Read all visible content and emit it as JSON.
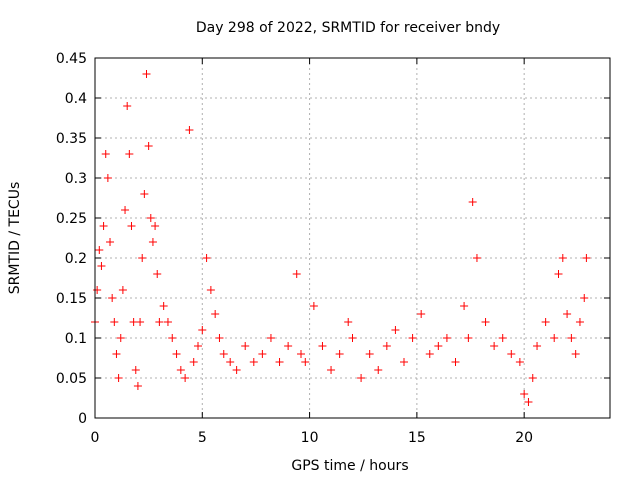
{
  "chart_data": {
    "type": "scatter",
    "title": "Day 298 of 2022, SRMTID for receiver bndy",
    "xlabel": "GPS time / hours",
    "ylabel": "SRMTID / TECUs",
    "xlim": [
      0,
      24
    ],
    "ylim": [
      0,
      0.45
    ],
    "xticks": [
      0,
      5,
      10,
      15,
      20
    ],
    "xtick_labels": [
      "0",
      "5",
      "10",
      "15",
      "20"
    ],
    "yticks": [
      0,
      0.05,
      0.1,
      0.15,
      0.2,
      0.25,
      0.3,
      0.35,
      0.4,
      0.45
    ],
    "ytick_labels": [
      "0",
      "0.05",
      "0.1",
      "0.15",
      "0.2",
      "0.25",
      "0.3",
      "0.35",
      "0.4",
      "0.45"
    ],
    "grid": true,
    "marker": "+",
    "color": "#ff0000",
    "series": [
      {
        "name": "SRMTID",
        "x": [
          0.0,
          0.1,
          0.2,
          0.3,
          0.4,
          0.5,
          0.6,
          0.7,
          0.8,
          0.9,
          1.0,
          1.1,
          1.2,
          1.3,
          1.4,
          1.5,
          1.6,
          1.7,
          1.8,
          1.9,
          2.0,
          2.1,
          2.2,
          2.3,
          2.4,
          2.5,
          2.6,
          2.7,
          2.8,
          2.9,
          3.0,
          3.2,
          3.4,
          3.6,
          3.8,
          4.0,
          4.2,
          4.4,
          4.6,
          4.8,
          5.0,
          5.2,
          5.4,
          5.6,
          5.8,
          6.0,
          6.3,
          6.6,
          7.0,
          7.4,
          7.8,
          8.2,
          8.6,
          9.0,
          9.4,
          9.6,
          9.8,
          10.2,
          10.6,
          11.0,
          11.4,
          11.8,
          12.0,
          12.4,
          12.8,
          13.2,
          13.6,
          14.0,
          14.4,
          14.8,
          15.2,
          15.6,
          16.0,
          16.4,
          16.8,
          17.2,
          17.4,
          17.6,
          17.8,
          18.2,
          18.6,
          19.0,
          19.4,
          19.8,
          20.0,
          20.2,
          20.4,
          20.6,
          21.0,
          21.4,
          21.6,
          21.8,
          22.0,
          22.2,
          22.4,
          22.6,
          22.8,
          22.9
        ],
        "y": [
          0.12,
          0.16,
          0.21,
          0.19,
          0.24,
          0.33,
          0.3,
          0.22,
          0.15,
          0.12,
          0.08,
          0.05,
          0.1,
          0.16,
          0.26,
          0.39,
          0.33,
          0.24,
          0.12,
          0.06,
          0.04,
          0.12,
          0.2,
          0.28,
          0.43,
          0.34,
          0.25,
          0.22,
          0.24,
          0.18,
          0.12,
          0.14,
          0.12,
          0.1,
          0.08,
          0.06,
          0.05,
          0.36,
          0.07,
          0.09,
          0.11,
          0.2,
          0.16,
          0.13,
          0.1,
          0.08,
          0.07,
          0.06,
          0.09,
          0.07,
          0.08,
          0.1,
          0.07,
          0.09,
          0.18,
          0.08,
          0.07,
          0.14,
          0.09,
          0.06,
          0.08,
          0.12,
          0.1,
          0.05,
          0.08,
          0.06,
          0.09,
          0.11,
          0.07,
          0.1,
          0.13,
          0.08,
          0.09,
          0.1,
          0.07,
          0.14,
          0.1,
          0.27,
          0.2,
          0.12,
          0.09,
          0.1,
          0.08,
          0.07,
          0.03,
          0.02,
          0.05,
          0.09,
          0.12,
          0.1,
          0.18,
          0.2,
          0.13,
          0.1,
          0.08,
          0.12,
          0.15,
          0.2
        ]
      }
    ]
  }
}
